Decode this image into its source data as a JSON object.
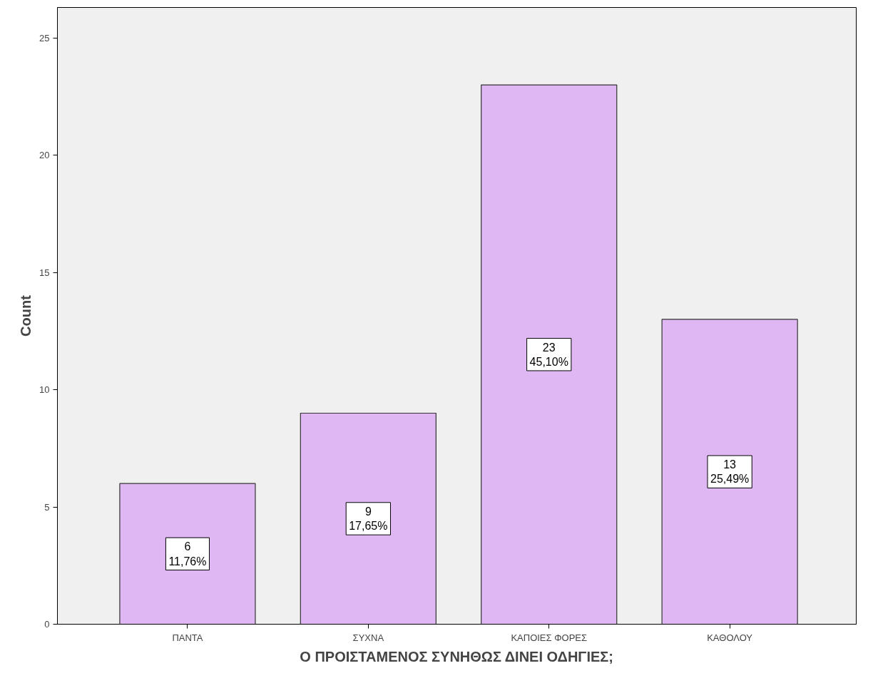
{
  "chart_data": {
    "type": "bar",
    "xlabel": "Ο ΠΡΟΙΣΤΑΜΕΝΟΣ ΣΥΝΗΘΩΣ ΔΙΝΕΙ ΟΔΗΓΙΕΣ;",
    "ylabel": "Count",
    "categories": [
      "ΠΑΝΤΑ",
      "ΣΥΧΝΑ",
      "ΚΑΠΟΙΕΣ ΦΟΡΕΣ",
      "ΚΑΘΟΛΟΥ"
    ],
    "values": [
      6,
      9,
      23,
      13
    ],
    "value_labels": [
      "6\n11,76%",
      "9\n17,65%",
      "23\n45,10%",
      "13\n25,49%"
    ],
    "color": "#dfb7f2",
    "ylim": [
      0,
      26.3
    ],
    "yticks": [
      0,
      5,
      10,
      15,
      20,
      25
    ],
    "grid": false
  }
}
